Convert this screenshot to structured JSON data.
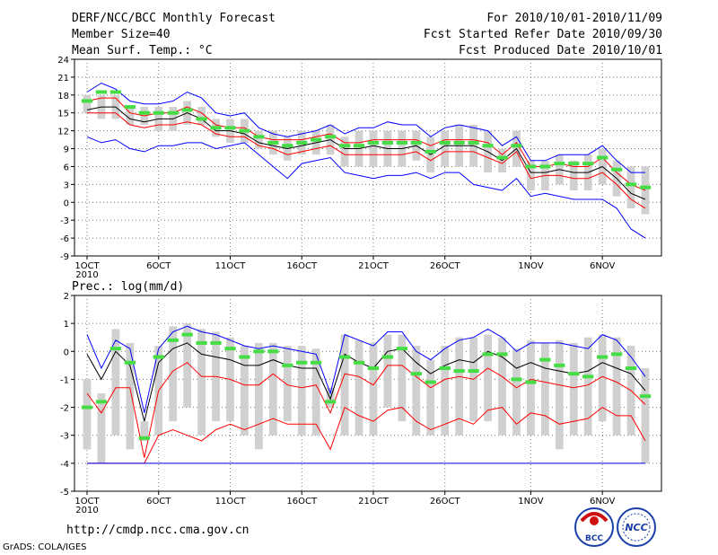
{
  "header": {
    "title": "DERF/NCC/BCC Monthly Forecast",
    "member_size": "Member Size=40",
    "variable": "Mean Surf. Temp.: °C",
    "period": "For 2010/10/01-2010/11/09",
    "started": "Fcst Started Refer Date 2010/09/30",
    "produced": "Fcst Produced Date 2010/10/01"
  },
  "footer": {
    "url": "http://cmdp.ncc.cma.gov.cn",
    "grads": "GrADS: COLA/IGES",
    "logo_bcc": "BCC",
    "logo_ncc": "NCC"
  },
  "colors": {
    "max": "#0000ff",
    "min": "#ff0000",
    "mean": "#000000",
    "obs": "#44dd44",
    "box": "#d0d0d0"
  },
  "chart_data": [
    {
      "type": "line",
      "title": "Mean Surf. Temp.: °C",
      "ylim": [
        -9,
        24
      ],
      "yticks": [
        24,
        21,
        18,
        15,
        12,
        9,
        6,
        3,
        0,
        -3,
        -6,
        -9
      ],
      "xticks": [
        "1OCT",
        "6OCT",
        "11OCT",
        "16OCT",
        "21OCT",
        "26OCT",
        "1NOV",
        "6NOV"
      ],
      "xticks_day": [
        1,
        6,
        11,
        16,
        21,
        26,
        32,
        37
      ],
      "year_label": "2010",
      "days": 40,
      "series": [
        {
          "name": "max",
          "color": "#0000ff",
          "values": [
            18.5,
            20.0,
            19.0,
            17.0,
            16.5,
            16.5,
            17.0,
            18.5,
            17.5,
            15.0,
            14.5,
            15.0,
            12.5,
            11.5,
            11.0,
            11.5,
            12.0,
            13.0,
            11.5,
            12.5,
            12.5,
            13.5,
            13.0,
            13.0,
            11.0,
            12.5,
            13.0,
            12.5,
            12.0,
            9.5,
            11.0,
            7.0,
            7.0,
            8.0,
            8.0,
            8.0,
            9.5,
            7.0,
            5.0,
            5.0
          ]
        },
        {
          "name": "upper",
          "color": "#ff0000",
          "values": [
            17.0,
            17.5,
            17.5,
            15.0,
            14.5,
            15.0,
            15.0,
            16.0,
            15.0,
            13.0,
            12.5,
            12.5,
            11.0,
            10.5,
            10.5,
            10.5,
            11.0,
            11.5,
            10.0,
            10.0,
            10.5,
            10.5,
            10.5,
            10.5,
            9.5,
            10.5,
            10.5,
            10.5,
            10.0,
            8.0,
            10.0,
            6.0,
            6.0,
            6.5,
            6.0,
            6.0,
            7.5,
            5.0,
            3.0,
            2.0
          ]
        },
        {
          "name": "mean",
          "color": "#000000",
          "values": [
            15.5,
            16.0,
            16.0,
            14.0,
            13.5,
            14.0,
            14.0,
            15.0,
            14.0,
            12.0,
            12.0,
            11.5,
            10.0,
            9.5,
            9.0,
            9.5,
            10.0,
            10.5,
            9.0,
            9.0,
            9.5,
            9.0,
            9.0,
            9.5,
            8.0,
            9.5,
            9.5,
            9.5,
            8.5,
            7.0,
            9.0,
            5.0,
            5.0,
            5.5,
            5.0,
            5.0,
            6.0,
            4.0,
            1.5,
            0.5
          ]
        },
        {
          "name": "lower",
          "color": "#ff0000",
          "values": [
            15.0,
            15.0,
            15.0,
            13.0,
            12.5,
            13.0,
            13.0,
            13.5,
            13.0,
            11.5,
            11.0,
            11.0,
            9.5,
            9.0,
            8.0,
            8.5,
            9.0,
            9.5,
            8.0,
            8.0,
            8.0,
            8.0,
            8.0,
            8.5,
            7.0,
            8.5,
            8.5,
            8.5,
            7.5,
            6.5,
            8.5,
            4.0,
            4.5,
            4.5,
            4.0,
            4.0,
            5.0,
            3.0,
            0.5,
            -1.0
          ]
        },
        {
          "name": "min",
          "color": "#0000ff",
          "values": [
            11.0,
            10.0,
            10.5,
            9.0,
            8.5,
            9.5,
            9.5,
            10.0,
            10.0,
            9.0,
            9.5,
            10.0,
            8.0,
            6.0,
            4.0,
            6.5,
            7.0,
            7.5,
            5.0,
            4.5,
            4.0,
            4.5,
            4.5,
            5.0,
            4.0,
            5.0,
            5.0,
            3.0,
            2.5,
            2.0,
            4.0,
            1.0,
            1.5,
            1.0,
            0.5,
            0.5,
            0.5,
            -1.0,
            -4.5,
            -6.0
          ]
        }
      ],
      "boxes": {
        "low": [
          15,
          14,
          14,
          13,
          13,
          12,
          12,
          13,
          13,
          11,
          10,
          10,
          9,
          8,
          7,
          8,
          8,
          8,
          6,
          6,
          6,
          6,
          6,
          7,
          5,
          6,
          6,
          6,
          5,
          5,
          6,
          2,
          2,
          3,
          2,
          2,
          3,
          1,
          -1,
          -2
        ],
        "high": [
          18,
          18,
          18,
          16,
          16,
          16,
          16,
          17,
          16,
          14,
          14,
          14,
          12,
          12,
          11,
          12,
          12,
          13,
          11,
          12,
          12,
          12,
          12,
          12,
          11,
          12,
          13,
          13,
          12,
          9,
          12,
          7,
          7,
          8,
          7,
          8,
          9,
          7,
          6,
          6
        ]
      },
      "obs": [
        17,
        18.5,
        18.5,
        16,
        15,
        15,
        15,
        15.5,
        14,
        12.5,
        12.5,
        12,
        11,
        10,
        9.5,
        10,
        10.5,
        11,
        9.5,
        9.5,
        10,
        10,
        10,
        10,
        8.5,
        10,
        10,
        10,
        9.5,
        7.5,
        9.5,
        6,
        6,
        6.5,
        6.5,
        6.5,
        7.5,
        5.5,
        3,
        2.5
      ]
    },
    {
      "type": "line",
      "title": "Prec.: log(mm/d)",
      "ylim": [
        -5,
        2
      ],
      "yticks": [
        2,
        1,
        0,
        -1,
        -2,
        -3,
        -4,
        -5
      ],
      "xticks": [
        "1OCT",
        "6OCT",
        "11OCT",
        "16OCT",
        "21OCT",
        "26OCT",
        "1NOV",
        "6NOV"
      ],
      "xticks_day": [
        1,
        6,
        11,
        16,
        21,
        26,
        32,
        37
      ],
      "year_label": "2010",
      "days": 40,
      "series": [
        {
          "name": "max",
          "color": "#0000ff",
          "values": [
            0.6,
            -0.6,
            0.4,
            0.1,
            -2.2,
            0.1,
            0.7,
            0.9,
            0.7,
            0.6,
            0.4,
            0.2,
            0.1,
            0.2,
            0.1,
            0.0,
            -0.1,
            -1.5,
            0.6,
            0.4,
            0.2,
            0.7,
            0.7,
            0.0,
            -0.3,
            0.1,
            0.4,
            0.5,
            0.8,
            0.5,
            0.0,
            0.3,
            0.3,
            0.3,
            0.2,
            0.1,
            0.6,
            0.4,
            -0.2,
            -0.9
          ]
        },
        {
          "name": "upper",
          "color": "#000000",
          "values": [
            -0.1,
            -1.0,
            0.0,
            -0.5,
            -2.5,
            -0.4,
            0.1,
            0.3,
            -0.1,
            -0.2,
            -0.3,
            -0.5,
            -0.5,
            -0.3,
            -0.5,
            -0.6,
            -0.6,
            -1.7,
            -0.1,
            -0.4,
            -0.6,
            0.0,
            0.1,
            -0.4,
            -0.8,
            -0.5,
            -0.3,
            -0.4,
            0.0,
            -0.2,
            -0.6,
            -0.4,
            -0.6,
            -0.7,
            -0.8,
            -0.7,
            -0.4,
            -0.6,
            -0.8,
            -1.4
          ]
        },
        {
          "name": "mean",
          "color": "#ff0000",
          "values": [
            -1.5,
            -2.2,
            -1.3,
            -1.3,
            -3.8,
            -1.4,
            -0.7,
            -0.4,
            -0.9,
            -0.9,
            -1.0,
            -1.2,
            -1.2,
            -0.8,
            -1.2,
            -1.3,
            -1.2,
            -2.2,
            -0.8,
            -0.9,
            -1.2,
            -0.5,
            -0.5,
            -0.9,
            -1.3,
            -1.0,
            -0.9,
            -1.0,
            -0.6,
            -0.9,
            -1.3,
            -1.0,
            -1.1,
            -1.2,
            -1.3,
            -1.2,
            -0.9,
            -1.1,
            -1.4,
            -1.9
          ]
        },
        {
          "name": "lower",
          "color": "#ff0000",
          "values": [
            -4.0,
            -4.0,
            -4.0,
            -4.0,
            -4.0,
            -3.0,
            -2.8,
            -3.0,
            -3.2,
            -2.8,
            -2.6,
            -2.8,
            -2.6,
            -2.4,
            -2.6,
            -2.6,
            -2.6,
            -3.5,
            -2.0,
            -2.3,
            -2.5,
            -2.1,
            -2.0,
            -2.5,
            -2.8,
            -2.6,
            -2.4,
            -2.6,
            -2.1,
            -2.0,
            -2.6,
            -2.2,
            -2.3,
            -2.6,
            -2.5,
            -2.4,
            -2.0,
            -2.3,
            -2.3,
            -3.2
          ]
        },
        {
          "name": "min",
          "color": "#0000ff",
          "values": [
            -4.0,
            -4.0,
            -4.0,
            -4.0,
            -4.0,
            -4.0,
            -4.0,
            -4.0,
            -4.0,
            -4.0,
            -4.0,
            -4.0,
            -4.0,
            -4.0,
            -4.0,
            -4.0,
            -4.0,
            -4.0,
            -4.0,
            -4.0,
            -4.0,
            -4.0,
            -4.0,
            -4.0,
            -4.0,
            -4.0,
            -4.0,
            -4.0,
            -4.0,
            -4.0,
            -4.0,
            -4.0,
            -4.0,
            -4.0,
            -4.0,
            -4.0,
            -4.0,
            -4.0,
            -4.0,
            -4.0
          ]
        }
      ],
      "boxes": {
        "low": [
          -3.5,
          -4,
          -3,
          -3.5,
          -3.2,
          -3,
          -2.5,
          -2,
          -3,
          -2.5,
          -2.5,
          -3,
          -3.5,
          -3,
          -2.5,
          -3,
          -3,
          -2,
          -3,
          -3,
          -3,
          -2,
          -2.5,
          -3,
          -3,
          -3,
          -3,
          -2.5,
          -2.5,
          -3,
          -3,
          -3,
          -3,
          -3.5,
          -3,
          -3,
          -2.5,
          -3,
          -3,
          -4
        ],
        "high": [
          -1,
          -1.5,
          0.8,
          0.3,
          -2.5,
          0.2,
          0.9,
          1.0,
          0.8,
          0.7,
          0.5,
          0.2,
          0.3,
          0.3,
          0.2,
          0.2,
          0.1,
          -1.3,
          0.6,
          0.4,
          0.3,
          0.6,
          0.6,
          0.2,
          -0.3,
          0.2,
          0.5,
          0.5,
          0.6,
          0.5,
          0.1,
          0.4,
          0.3,
          0.4,
          0.3,
          0.5,
          0.6,
          0.5,
          0.2,
          -0.6
        ]
      },
      "obs": [
        -2,
        -1.8,
        0.1,
        -0.4,
        -3.1,
        -0.2,
        0.4,
        0.6,
        0.3,
        0.3,
        0.1,
        -0.2,
        0,
        0,
        -0.5,
        -0.4,
        -0.4,
        -1.8,
        -0.2,
        -0.4,
        -0.6,
        -0.2,
        0.1,
        -0.8,
        -1.1,
        -0.6,
        -0.7,
        -0.7,
        -0.1,
        -0.1,
        -1,
        -1.1,
        -0.3,
        -0.5,
        -0.8,
        -0.9,
        -0.2,
        -0.1,
        -0.6,
        -1.6
      ]
    }
  ]
}
